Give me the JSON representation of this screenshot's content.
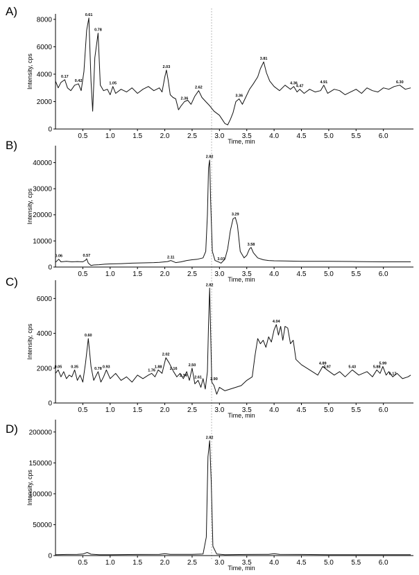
{
  "chart_data": [
    {
      "type": "line",
      "panel_label": "A)",
      "xlabel": "Time, min",
      "ylabel": "Intensity, cps",
      "xlim": [
        0,
        6.55
      ],
      "ylim": [
        0,
        8400
      ],
      "x_ticks": [
        "0.5",
        "1.0",
        "1.5",
        "2.0",
        "2.5",
        "3.0",
        "3.5",
        "4.0",
        "4.5",
        "5.0",
        "5.5",
        "6.0"
      ],
      "y_ticks": [
        0,
        2000,
        4000,
        6000,
        8000
      ],
      "peak_labels": [
        "0.17",
        "0.42",
        "0.61",
        "0.78",
        "1.05",
        "2.03",
        "2.36",
        "2.62",
        "3.36",
        "3.81",
        "4.36",
        "4.47",
        "4.91",
        "6.30"
      ],
      "series": [
        {
          "x": [
            0,
            0.05,
            0.1,
            0.17,
            0.22,
            0.28,
            0.35,
            0.42,
            0.47,
            0.52,
            0.57,
            0.61,
            0.65,
            0.68,
            0.72,
            0.78,
            0.82,
            0.88,
            0.95,
            1.0,
            1.05,
            1.1,
            1.2,
            1.3,
            1.4,
            1.5,
            1.6,
            1.7,
            1.8,
            1.9,
            1.95,
            2.0,
            2.03,
            2.06,
            2.1,
            2.15,
            2.2,
            2.25,
            2.3,
            2.36,
            2.42,
            2.48,
            2.55,
            2.62,
            2.68,
            2.75,
            2.82,
            2.9,
            3.0,
            3.05,
            3.1,
            3.15,
            3.2,
            3.25,
            3.3,
            3.36,
            3.42,
            3.48,
            3.55,
            3.62,
            3.7,
            3.75,
            3.81,
            3.86,
            3.92,
            4.0,
            4.1,
            4.2,
            4.3,
            4.36,
            4.42,
            4.47,
            4.55,
            4.65,
            4.75,
            4.85,
            4.91,
            4.98,
            5.1,
            5.2,
            5.3,
            5.4,
            5.5,
            5.6,
            5.7,
            5.8,
            5.9,
            6.0,
            6.1,
            6.2,
            6.3,
            6.4,
            6.5
          ],
          "y": [
            3500,
            3000,
            3400,
            3600,
            3000,
            2800,
            3200,
            3300,
            2800,
            4200,
            7200,
            8100,
            3500,
            1300,
            5200,
            7000,
            3200,
            2800,
            2900,
            2500,
            3100,
            2600,
            2900,
            2700,
            3000,
            2600,
            2900,
            3100,
            2800,
            3000,
            2700,
            3800,
            4300,
            3600,
            2500,
            2300,
            2200,
            1400,
            1700,
            2000,
            2100,
            1800,
            2400,
            2800,
            2300,
            2000,
            1700,
            1300,
            1000,
            700,
            400,
            300,
            700,
            1200,
            2000,
            2200,
            1800,
            2300,
            2900,
            3300,
            3800,
            4400,
            4900,
            4100,
            3500,
            3100,
            2800,
            3200,
            2900,
            3100,
            2700,
            2900,
            2600,
            2900,
            2700,
            2800,
            3200,
            2600,
            2900,
            2800,
            2500,
            2700,
            2900,
            2600,
            3000,
            2800,
            2700,
            3000,
            2900,
            3100,
            3200,
            2900,
            3000
          ]
        }
      ]
    },
    {
      "type": "line",
      "panel_label": "B)",
      "xlabel": "Time, min",
      "ylabel": "Intensity, cps",
      "xlim": [
        0,
        6.55
      ],
      "ylim": [
        0,
        46500
      ],
      "x_ticks": [
        "0.5",
        "1.0",
        "1.5",
        "2.0",
        "2.5",
        "3.0",
        "3.5",
        "4.0",
        "4.5",
        "5.0",
        "5.5",
        "6.0"
      ],
      "y_ticks": [
        0,
        10000,
        20000,
        30000,
        40000
      ],
      "peak_labels": [
        "0.06",
        "0.57",
        "2.11",
        "2.82",
        "3.03",
        "3.29",
        "3.58"
      ],
      "series": [
        {
          "x": [
            0,
            0.06,
            0.1,
            0.2,
            0.3,
            0.4,
            0.5,
            0.55,
            0.57,
            0.6,
            0.65,
            0.7,
            0.8,
            0.9,
            1.0,
            1.2,
            1.4,
            1.6,
            1.8,
            1.9,
            2.0,
            2.05,
            2.11,
            2.2,
            2.3,
            2.4,
            2.5,
            2.6,
            2.7,
            2.75,
            2.78,
            2.8,
            2.82,
            2.84,
            2.87,
            2.92,
            3.0,
            3.03,
            3.1,
            3.15,
            3.2,
            3.25,
            3.29,
            3.33,
            3.38,
            3.45,
            3.5,
            3.55,
            3.58,
            3.62,
            3.7,
            3.8,
            3.9,
            4.0,
            4.2,
            4.5,
            5.0,
            5.5,
            6.0,
            6.5
          ],
          "y": [
            1800,
            3000,
            2000,
            2200,
            2000,
            2100,
            2000,
            2600,
            3200,
            1500,
            600,
            800,
            900,
            1100,
            1200,
            1300,
            1500,
            1600,
            1700,
            1800,
            2000,
            2100,
            2500,
            1700,
            2000,
            2500,
            2800,
            3000,
            3500,
            6000,
            20000,
            38000,
            41000,
            25000,
            6000,
            2500,
            1800,
            1500,
            3000,
            7000,
            14000,
            18500,
            19000,
            16000,
            6000,
            3500,
            4500,
            7000,
            7500,
            5500,
            3500,
            2800,
            2500,
            2400,
            2300,
            2200,
            2200,
            2100,
            2000,
            2000
          ]
        }
      ]
    },
    {
      "type": "line",
      "panel_label": "C)",
      "xlabel": "Time, min",
      "ylabel": "Intensity, cps",
      "xlim": [
        0,
        6.55
      ],
      "ylim": [
        0,
        7050
      ],
      "x_ticks": [
        "0.5",
        "1.0",
        "1.5",
        "2.0",
        "2.5",
        "3.0",
        "3.5",
        "4.0",
        "4.5",
        "5.0",
        "5.5",
        "6.0"
      ],
      "y_ticks": [
        0,
        2000,
        4000,
        6000
      ],
      "peak_labels": [
        "0.05",
        "0.35",
        "0.60",
        "0.78",
        "0.93",
        "1.76",
        "1.88",
        "2.02",
        "2.16",
        "2.34",
        "2.50",
        "2.61",
        "2.82",
        "2.90",
        "4.04",
        "4.89",
        "4.97",
        "5.43",
        "5.88",
        "5.99",
        "6.17"
      ],
      "series": [
        {
          "x": [
            0,
            0.05,
            0.1,
            0.15,
            0.2,
            0.25,
            0.3,
            0.35,
            0.4,
            0.45,
            0.5,
            0.55,
            0.6,
            0.65,
            0.7,
            0.78,
            0.83,
            0.88,
            0.93,
            1.0,
            1.1,
            1.2,
            1.3,
            1.4,
            1.5,
            1.6,
            1.7,
            1.76,
            1.82,
            1.88,
            1.95,
            2.02,
            2.08,
            2.16,
            2.22,
            2.28,
            2.34,
            2.4,
            2.45,
            2.5,
            2.55,
            2.61,
            2.66,
            2.7,
            2.74,
            2.78,
            2.8,
            2.82,
            2.84,
            2.86,
            2.9,
            2.95,
            3.0,
            3.1,
            3.2,
            3.3,
            3.4,
            3.5,
            3.6,
            3.65,
            3.7,
            3.75,
            3.8,
            3.85,
            3.9,
            3.95,
            4.0,
            4.04,
            4.08,
            4.12,
            4.16,
            4.2,
            4.25,
            4.3,
            4.35,
            4.4,
            4.5,
            4.6,
            4.7,
            4.8,
            4.89,
            4.97,
            5.1,
            5.2,
            5.3,
            5.43,
            5.55,
            5.7,
            5.8,
            5.88,
            5.94,
            5.99,
            6.05,
            6.1,
            6.17,
            6.25,
            6.35,
            6.45,
            6.5
          ],
          "y": [
            1700,
            1900,
            1500,
            1800,
            1400,
            1600,
            1500,
            1900,
            1300,
            1600,
            1200,
            2300,
            3700,
            2100,
            1300,
            1800,
            1200,
            1500,
            1900,
            1400,
            1700,
            1300,
            1500,
            1200,
            1600,
            1400,
            1600,
            1700,
            1500,
            1900,
            1700,
            2600,
            2300,
            1800,
            1500,
            1700,
            1400,
            1800,
            1300,
            2000,
            1100,
            1300,
            900,
            1400,
            800,
            1800,
            4500,
            6600,
            4000,
            1200,
            1000,
            500,
            900,
            700,
            800,
            900,
            1000,
            1300,
            1500,
            2700,
            3700,
            3400,
            3600,
            3200,
            3800,
            3500,
            4200,
            4500,
            3900,
            4400,
            3600,
            4400,
            4300,
            3400,
            3600,
            2500,
            2200,
            2000,
            1800,
            1600,
            2100,
            1900,
            1600,
            1800,
            1500,
            1900,
            1600,
            1800,
            1500,
            1900,
            1700,
            2100,
            1600,
            1800,
            1500,
            1700,
            1400,
            1500,
            1600
          ]
        }
      ]
    },
    {
      "type": "line",
      "panel_label": "D)",
      "xlabel": "Time, min",
      "ylabel": "Intensity, cps",
      "xlim": [
        0,
        6.55
      ],
      "ylim": [
        0,
        220000
      ],
      "x_ticks": [
        "0.5",
        "1.0",
        "1.5",
        "2.0",
        "2.5",
        "3.0",
        "3.5",
        "4.0",
        "4.5",
        "5.0",
        "5.5",
        "6.0"
      ],
      "y_ticks": [
        0,
        50000,
        100000,
        150000,
        200000
      ],
      "peak_labels": [
        "2.82"
      ],
      "series": [
        {
          "x": [
            0,
            0.2,
            0.4,
            0.5,
            0.58,
            0.65,
            0.8,
            1.0,
            1.5,
            1.9,
            2.0,
            2.1,
            2.5,
            2.7,
            2.76,
            2.79,
            2.82,
            2.85,
            2.88,
            2.95,
            3.1,
            3.5,
            3.9,
            4.0,
            4.1,
            4.5,
            5.0,
            5.5,
            6.0,
            6.5
          ],
          "y": [
            1500,
            1800,
            2000,
            2500,
            5000,
            2200,
            1500,
            1500,
            1800,
            2000,
            3000,
            2000,
            2000,
            2500,
            30000,
            160000,
            186000,
            120000,
            15000,
            2500,
            1500,
            1800,
            2000,
            3000,
            2000,
            1800,
            1500,
            1500,
            1500,
            1500
          ]
        }
      ]
    }
  ]
}
